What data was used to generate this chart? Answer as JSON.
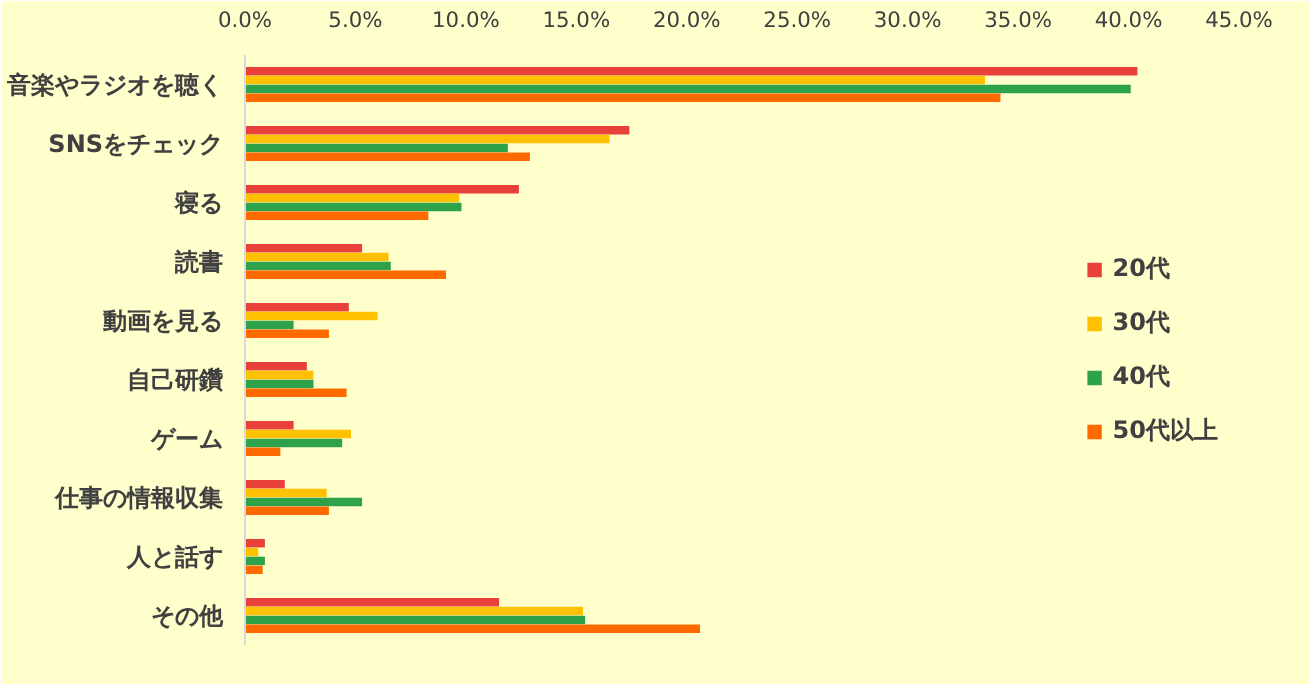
{
  "chart_data": {
    "type": "bar",
    "orientation": "horizontal",
    "categories": [
      "音楽やラジオを聴く",
      "SNSをチェック",
      "寝る",
      "読書",
      "動画を見る",
      "自己研鑽",
      "ゲーム",
      "仕事の情報収集",
      "人と話す",
      "その他"
    ],
    "series": [
      {
        "name": "20代",
        "color": "#e8413a",
        "values": [
          40.4,
          17.4,
          12.4,
          5.3,
          4.7,
          2.8,
          2.2,
          1.8,
          0.9,
          11.5
        ]
      },
      {
        "name": "30代",
        "color": "#ffc000",
        "values": [
          33.5,
          16.5,
          9.7,
          6.5,
          6.0,
          3.1,
          4.8,
          3.7,
          0.6,
          15.3
        ]
      },
      {
        "name": "40代",
        "color": "#2ea14b",
        "values": [
          40.1,
          11.9,
          9.8,
          6.6,
          2.2,
          3.1,
          4.4,
          5.3,
          0.9,
          15.4
        ]
      },
      {
        "name": "50代以上",
        "color": "#ff6a00",
        "values": [
          34.2,
          12.9,
          8.3,
          9.1,
          3.8,
          4.6,
          1.6,
          3.8,
          0.8,
          20.6
        ]
      }
    ],
    "xlim": [
      0,
      45
    ],
    "xticks": [
      {
        "value": 0,
        "label": "0.0%"
      },
      {
        "value": 5,
        "label": "5.0%"
      },
      {
        "value": 10,
        "label": "10.0%"
      },
      {
        "value": 15,
        "label": "15.0%"
      },
      {
        "value": 20,
        "label": "20.0%"
      },
      {
        "value": 25,
        "label": "25.0%"
      },
      {
        "value": 30,
        "label": "30.0%"
      },
      {
        "value": 35,
        "label": "35.0%"
      },
      {
        "value": 40,
        "label": "40.0%"
      },
      {
        "value": 45,
        "label": "45.0%"
      }
    ],
    "grid": false,
    "legend": "right"
  }
}
